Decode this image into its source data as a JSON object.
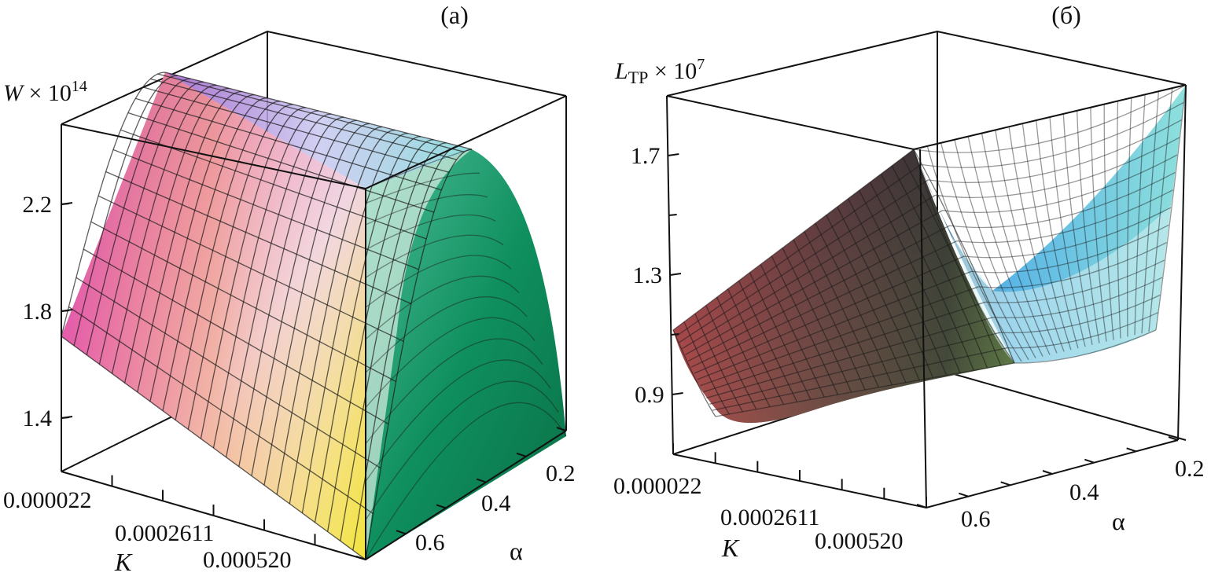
{
  "chart_data": [
    {
      "type": "surface3d",
      "panel_label": "(a)",
      "zlabel": {
        "main": "W",
        "mult": " × 10",
        "exp": "14"
      },
      "xlabel": "K",
      "ylabel": "α",
      "k_range": [
        2.2e-05,
        0.00052
      ],
      "alpha_range": [
        0.2,
        0.7
      ],
      "zlim": [
        1.2,
        2.5
      ],
      "z_ticks": [
        {
          "value": 1.4,
          "label": "1.4"
        },
        {
          "value": 1.8,
          "label": "1.8"
        },
        {
          "value": 2.2,
          "label": "2.2"
        }
      ],
      "k_ticks": [
        {
          "value": 2.2e-05,
          "label": "0.000022"
        },
        {
          "value": 0.0002611,
          "label": "0.0002611"
        },
        {
          "value": 0.00052,
          "label": "0.000520"
        }
      ],
      "alpha_ticks": [
        {
          "value": 0.2,
          "label": "0.2"
        },
        {
          "value": 0.4,
          "label": "0.4"
        },
        {
          "value": 0.6,
          "label": "0.6"
        }
      ],
      "surface": {
        "description_of_shape": "ridge in alpha, nearly constant along K",
        "alpha": [
          0.2,
          0.25,
          0.3,
          0.35,
          0.4,
          0.45,
          0.5,
          0.55,
          0.6,
          0.65,
          0.7
        ],
        "W_vs_alpha": [
          1.22,
          1.62,
          1.96,
          2.2,
          2.34,
          2.38,
          2.34,
          2.2,
          1.98,
          1.68,
          1.3
        ],
        "corner_values": {
          "K_min_alpha_max": 1.65,
          "K_max_alpha_max": 1.25,
          "ridge_K_min": 2.45,
          "ridge_K_max": 2.25
        }
      }
    },
    {
      "type": "surface3d",
      "panel_label": "(б)",
      "zlabel": {
        "main": "L",
        "sub": "TP",
        "mult": " × 10",
        "exp": "7"
      },
      "xlabel": "K",
      "ylabel": "α",
      "k_range": [
        2.2e-05,
        0.00052
      ],
      "alpha_range": [
        0.2,
        0.7
      ],
      "zlim": [
        0.7,
        1.9
      ],
      "z_ticks": [
        {
          "value": 0.9,
          "label": "0.9"
        },
        {
          "value": 1.3,
          "label": "1.3"
        },
        {
          "value": 1.7,
          "label": "1.7"
        }
      ],
      "k_ticks": [
        {
          "value": 2.2e-05,
          "label": "0.000022"
        },
        {
          "value": 0.0002611,
          "label": "0.0002611"
        },
        {
          "value": 0.00052,
          "label": "0.000520"
        }
      ],
      "alpha_ticks": [
        {
          "value": 0.2,
          "label": "0.2"
        },
        {
          "value": 0.4,
          "label": "0.4"
        },
        {
          "value": 0.6,
          "label": "0.6"
        }
      ],
      "surface": {
        "description_of_shape": "valley in K, rising toward both K ends, increasing as alpha decreases",
        "corner_values": {
          "K_min_alpha_max": 1.12,
          "K_max_alpha_max": 1.72,
          "K_min_alpha_min": 0.95,
          "K_max_alpha_min": 1.88,
          "valley_min": 0.8
        }
      }
    }
  ]
}
